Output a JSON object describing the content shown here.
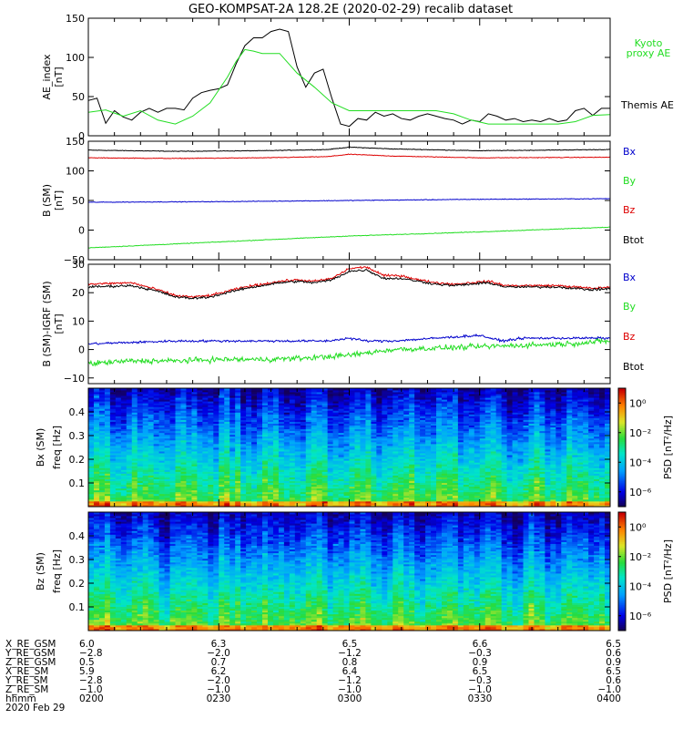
{
  "title": "GEO-KOMPSAT-2A 128.2E (2020-02-29) recalib dataset",
  "colors": {
    "black": "#000000",
    "blue": "#0000cc",
    "green": "#22dd22",
    "red": "#dd0000"
  },
  "chart_data": [
    {
      "type": "line",
      "panel": "ae",
      "ylabel": "AE_index [nT]",
      "ylim": [
        0,
        150
      ],
      "yticks": [
        0,
        50,
        100,
        150
      ],
      "xlim": [
        0,
        120
      ],
      "x_unit": "minutes after 0200 UT",
      "series": [
        {
          "name": "Themis AE",
          "color": "#000000",
          "x": [
            0,
            2,
            4,
            6,
            8,
            10,
            12,
            14,
            16,
            18,
            20,
            22,
            24,
            26,
            28,
            30,
            32,
            34,
            36,
            38,
            40,
            42,
            44,
            46,
            48,
            50,
            52,
            54,
            56,
            58,
            60,
            62,
            64,
            66,
            68,
            70,
            72,
            74,
            76,
            78,
            80,
            82,
            84,
            86,
            88,
            90,
            92,
            94,
            96,
            98,
            100,
            102,
            104,
            106,
            108,
            110,
            112,
            114,
            116,
            118,
            120
          ],
          "values": [
            45,
            48,
            16,
            32,
            24,
            20,
            30,
            35,
            30,
            35,
            35,
            33,
            48,
            55,
            58,
            60,
            65,
            92,
            115,
            125,
            125,
            133,
            136,
            133,
            88,
            62,
            80,
            85,
            48,
            15,
            12,
            22,
            20,
            30,
            25,
            28,
            22,
            20,
            25,
            28,
            25,
            22,
            20,
            15,
            20,
            18,
            28,
            25,
            20,
            22,
            18,
            20,
            18,
            22,
            18,
            20,
            32,
            35,
            26,
            35,
            35
          ]
        },
        {
          "name": "Kyoto proxy AE",
          "color": "#22dd22",
          "x": [
            0,
            4,
            8,
            12,
            16,
            20,
            24,
            28,
            32,
            34,
            36,
            38,
            40,
            44,
            48,
            52,
            56,
            60,
            64,
            68,
            72,
            76,
            80,
            84,
            88,
            92,
            96,
            100,
            104,
            108,
            112,
            116,
            120
          ],
          "values": [
            30,
            33,
            25,
            32,
            20,
            15,
            25,
            42,
            75,
            95,
            110,
            108,
            105,
            105,
            80,
            62,
            42,
            32,
            32,
            32,
            32,
            32,
            32,
            28,
            20,
            15,
            15,
            15,
            15,
            15,
            18,
            26,
            27
          ]
        }
      ],
      "legend": [
        "Kyoto proxy AE",
        "Themis AE"
      ]
    },
    {
      "type": "line",
      "panel": "b_sm",
      "ylabel": "B (SM) [nT]",
      "ylim": [
        -50,
        150
      ],
      "yticks": [
        -50,
        0,
        50,
        100,
        150
      ],
      "xlim": [
        0,
        120
      ],
      "series": [
        {
          "name": "Btot",
          "color": "#000000",
          "x": [
            0,
            20,
            40,
            55,
            60,
            70,
            90,
            120
          ],
          "values": [
            135,
            133,
            134,
            136,
            140,
            137,
            134,
            136
          ]
        },
        {
          "name": "Bx",
          "color": "#dd0000",
          "x": [
            0,
            20,
            40,
            55,
            60,
            70,
            90,
            120
          ],
          "values": [
            122,
            121,
            122,
            124,
            128,
            125,
            122,
            123
          ]
        },
        {
          "name": "By",
          "color": "#0000cc",
          "x": [
            0,
            30,
            60,
            90,
            120
          ],
          "values": [
            47,
            48,
            50,
            52,
            53
          ]
        },
        {
          "name": "Bz",
          "color": "#22dd22",
          "x": [
            0,
            30,
            60,
            90,
            120
          ],
          "values": [
            -30,
            -20,
            -10,
            -3,
            5
          ]
        }
      ],
      "legend": [
        "Bx",
        "By",
        "Bz",
        "Btot"
      ]
    },
    {
      "type": "line",
      "panel": "b_igrf",
      "ylabel": "B (SM)-IGRF (SM) [nT]",
      "ylim": [
        -12,
        30
      ],
      "yticks": [
        -10,
        0,
        10,
        20,
        30
      ],
      "xlim": [
        0,
        120
      ],
      "series": [
        {
          "name": "Bz",
          "color": "#dd0000",
          "x": [
            0,
            10,
            16,
            20,
            24,
            28,
            32,
            36,
            40,
            44,
            48,
            52,
            56,
            60,
            64,
            68,
            72,
            76,
            80,
            84,
            88,
            92,
            96,
            100,
            104,
            108,
            112,
            116,
            120
          ],
          "values": [
            23,
            23.5,
            21,
            19,
            18.5,
            19,
            20.5,
            22,
            23,
            24,
            24.5,
            24,
            25,
            28.5,
            29,
            26,
            26,
            24.5,
            23.5,
            23,
            23.5,
            24,
            22.5,
            22.5,
            22.5,
            22.5,
            22,
            21.5,
            22
          ]
        },
        {
          "name": "Btot",
          "color": "#000000",
          "x": [
            0,
            10,
            16,
            20,
            24,
            28,
            32,
            36,
            40,
            44,
            48,
            52,
            56,
            60,
            64,
            68,
            72,
            76,
            80,
            84,
            88,
            92,
            96,
            100,
            104,
            108,
            112,
            116,
            120
          ],
          "values": [
            22,
            22.5,
            20.5,
            18.5,
            18,
            18.5,
            20,
            21.5,
            22.5,
            23.5,
            24,
            23.5,
            24.5,
            27.5,
            28,
            25,
            25,
            24,
            23,
            22.5,
            23,
            23.5,
            22,
            22,
            22,
            22,
            21.5,
            21,
            21.5
          ]
        },
        {
          "name": "By",
          "color": "#0000cc",
          "x": [
            0,
            20,
            40,
            55,
            60,
            64,
            70,
            80,
            90,
            95,
            100,
            110,
            120
          ],
          "values": [
            2,
            3,
            3,
            3,
            4,
            3,
            3,
            4,
            5,
            3,
            4,
            4,
            4
          ]
        },
        {
          "name": "Bx",
          "color": "#22dd22",
          "x": [
            0,
            10,
            20,
            30,
            40,
            50,
            60,
            70,
            80,
            90,
            100,
            110,
            120
          ],
          "values": [
            -5,
            -4,
            -4,
            -3.5,
            -3.5,
            -3,
            -2,
            0,
            0.5,
            1,
            1.5,
            2,
            3
          ]
        }
      ],
      "legend": [
        "Bx",
        "By",
        "Bz",
        "Btot"
      ]
    },
    {
      "type": "heatmap",
      "panel": "spec_bx",
      "ylabel": "Bx (SM) freq [Hz]",
      "ylim": [
        0,
        0.5
      ],
      "yticks": [
        "0.1",
        "0.2",
        "0.3",
        "0.4"
      ],
      "xlim": [
        0,
        120
      ],
      "colorbar": {
        "label": "PSD [nT²/Hz]",
        "ticks": [
          "10⁰",
          "10⁻²",
          "10⁻⁴",
          "10⁻⁶"
        ],
        "log_range": [
          -7,
          1
        ]
      }
    },
    {
      "type": "heatmap",
      "panel": "spec_bz",
      "ylabel": "Bz (SM) freq [Hz]",
      "ylim": [
        0,
        0.5
      ],
      "yticks": [
        "0.1",
        "0.2",
        "0.3",
        "0.4"
      ],
      "xlim": [
        0,
        120
      ],
      "colorbar": {
        "label": "PSD [nT²/Hz]",
        "ticks": [
          "10⁰",
          "10⁻²",
          "10⁻⁴",
          "10⁻⁶"
        ],
        "log_range": [
          -7,
          1
        ]
      }
    }
  ],
  "ephemeris": {
    "labels": [
      "X_RE_GSM",
      "Y_RE_GSM",
      "Z_RE_GSM",
      "X_RE_SM",
      "Y_RE_SM",
      "Z_RE_SM",
      "hhmm"
    ],
    "date_label": "2020 Feb 29",
    "columns": [
      [
        "6.0",
        "−2.8",
        "0.5",
        "5.9",
        "−2.8",
        "−1.0",
        "0200"
      ],
      [
        "6.3",
        "−2.0",
        "0.7",
        "6.2",
        "−2.0",
        "−1.0",
        "0230"
      ],
      [
        "6.5",
        "−1.2",
        "0.8",
        "6.4",
        "−1.2",
        "−1.0",
        "0300"
      ],
      [
        "6.6",
        "−0.3",
        "0.9",
        "6.5",
        "−0.3",
        "−1.0",
        "0330"
      ],
      [
        "6.5",
        "0.6",
        "0.9",
        "6.5",
        "0.6",
        "−1.0",
        "0400"
      ]
    ]
  }
}
